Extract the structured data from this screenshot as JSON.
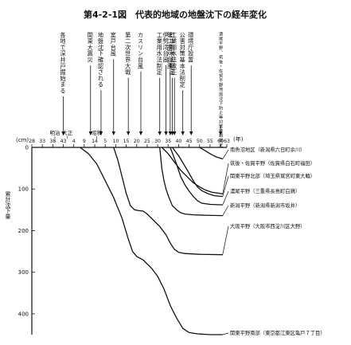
{
  "chart_data": {
    "type": "line",
    "title": "第4-2-1図　代表的地域の地盤沈下の経年変化",
    "xlabel": "(年)",
    "ylabel": "累計沈下量",
    "y_unit": "(cm)",
    "era_labels": [
      {
        "text": "明治",
        "year": 1906
      },
      {
        "text": "大正",
        "year": 1912
      },
      {
        "text": "昭和",
        "year": 1926
      }
    ],
    "x_ticks": [
      {
        "label": "28",
        "year": 1895
      },
      {
        "label": "33",
        "year": 1900
      },
      {
        "label": "38",
        "year": 1905
      },
      {
        "label": "43",
        "year": 1910
      },
      {
        "label": "4",
        "year": 1915
      },
      {
        "label": "9",
        "year": 1920
      },
      {
        "label": "14",
        "year": 1925
      },
      {
        "label": "5",
        "year": 1930
      },
      {
        "label": "10",
        "year": 1935
      },
      {
        "label": "15",
        "year": 1940
      },
      {
        "label": "20",
        "year": 1945
      },
      {
        "label": "25",
        "year": 1950
      },
      {
        "label": "30",
        "year": 1955
      },
      {
        "label": "35",
        "year": 1960
      },
      {
        "label": "40",
        "year": 1965
      },
      {
        "label": "45",
        "year": 1970
      },
      {
        "label": "50",
        "year": 1975
      },
      {
        "label": "55",
        "year": 1980
      },
      {
        "label": "60",
        "year": 1985
      },
      {
        "label": "63",
        "year": 1988
      }
    ],
    "xlim": [
      1895,
      1988
    ],
    "y_ticks": [
      0,
      100,
      200,
      300,
      400
    ],
    "ylim": [
      0,
      450
    ],
    "events": [
      {
        "label": "各地で深井戸掘始まる",
        "year": 1910
      },
      {
        "label": "関東大震災",
        "year": 1923
      },
      {
        "label": "地盤沈下確認される",
        "year": 1928
      },
      {
        "label": "室戸台風",
        "year": 1934
      },
      {
        "label": "第二次世界大戦",
        "year": 1941
      },
      {
        "label": "カスリン台風",
        "year": 1947
      },
      {
        "label": "工業用水法制定",
        "year": 1956
      },
      {
        "label": "伊勢湾台風",
        "year": 1959
      },
      {
        "label": "第二室戸台風",
        "year": 1961
      },
      {
        "label": "ビル用水法制定",
        "year": 1962
      },
      {
        "label": "工業用水法改正",
        "year": 1963
      },
      {
        "label": "公害対策基本法制定",
        "year": 1967
      },
      {
        "label": "環境庁設置",
        "year": 1971
      },
      {
        "label": "濃尾平野、筑後・佐賀平野地盤沈下防止等対策要綱策定",
        "year": 1985
      }
    ],
    "series": [
      {
        "name": "南魚沼地区（新潟県六日町余川）",
        "points": [
          [
            1975,
            0
          ],
          [
            1977,
            6
          ],
          [
            1979,
            12
          ],
          [
            1981,
            18
          ],
          [
            1983,
            23
          ],
          [
            1985,
            26
          ],
          [
            1986,
            28
          ]
        ]
      },
      {
        "name": "筑後・佐賀平野（佐賀県白石町福田）",
        "points": [
          [
            1957,
            0
          ],
          [
            1960,
            15
          ],
          [
            1963,
            35
          ],
          [
            1966,
            55
          ],
          [
            1969,
            70
          ],
          [
            1972,
            85
          ],
          [
            1975,
            95
          ],
          [
            1978,
            103
          ],
          [
            1981,
            108
          ],
          [
            1984,
            110
          ],
          [
            1986,
            112
          ]
        ]
      },
      {
        "name": "関東平野北部（埼玉県鷲宮町東大輪）",
        "points": [
          [
            1962,
            0
          ],
          [
            1965,
            20
          ],
          [
            1968,
            45
          ],
          [
            1970,
            62
          ],
          [
            1972,
            80
          ],
          [
            1974,
            95
          ],
          [
            1976,
            104
          ],
          [
            1979,
            111
          ],
          [
            1982,
            116
          ],
          [
            1986,
            118
          ]
        ]
      },
      {
        "name": "濃尾平野（三重県長島町白鶏）",
        "points": [
          [
            1961,
            0
          ],
          [
            1964,
            40
          ],
          [
            1966,
            70
          ],
          [
            1968,
            90
          ],
          [
            1970,
            105
          ],
          [
            1972,
            118
          ],
          [
            1974,
            128
          ],
          [
            1976,
            134
          ],
          [
            1980,
            137
          ],
          [
            1986,
            138
          ]
        ]
      },
      {
        "name": "新潟平野（新潟県新潟市坂井）",
        "points": [
          [
            1956,
            0
          ],
          [
            1957,
            50
          ],
          [
            1958,
            80
          ],
          [
            1959,
            100
          ],
          [
            1960,
            115
          ],
          [
            1962,
            140
          ],
          [
            1964,
            150
          ],
          [
            1966,
            157
          ],
          [
            1968,
            160
          ],
          [
            1972,
            162
          ],
          [
            1977,
            163
          ],
          [
            1986,
            164
          ]
        ]
      },
      {
        "name": "大阪平野（大阪市西淀川区大野）",
        "points": [
          [
            1934,
            0
          ],
          [
            1936,
            30
          ],
          [
            1938,
            70
          ],
          [
            1940,
            110
          ],
          [
            1942,
            140
          ],
          [
            1944,
            150
          ],
          [
            1946,
            152
          ],
          [
            1948,
            153
          ],
          [
            1950,
            160
          ],
          [
            1953,
            175
          ],
          [
            1956,
            190
          ],
          [
            1959,
            210
          ],
          [
            1961,
            230
          ],
          [
            1963,
            245
          ],
          [
            1965,
            252
          ],
          [
            1968,
            255
          ],
          [
            1975,
            257
          ],
          [
            1986,
            258
          ]
        ]
      },
      {
        "name": "関東平野南部（東京都江東区亀戸７丁目）",
        "points": [
          [
            1918,
            0
          ],
          [
            1922,
            15
          ],
          [
            1926,
            40
          ],
          [
            1930,
            80
          ],
          [
            1934,
            120
          ],
          [
            1938,
            170
          ],
          [
            1941,
            220
          ],
          [
            1943,
            250
          ],
          [
            1945,
            262
          ],
          [
            1948,
            270
          ],
          [
            1952,
            290
          ],
          [
            1955,
            310
          ],
          [
            1958,
            340
          ],
          [
            1961,
            380
          ],
          [
            1964,
            410
          ],
          [
            1967,
            435
          ],
          [
            1970,
            445
          ],
          [
            1974,
            448
          ],
          [
            1980,
            450
          ],
          [
            1986,
            450
          ]
        ]
      }
    ],
    "grid": false,
    "legend": "inline-right"
  }
}
